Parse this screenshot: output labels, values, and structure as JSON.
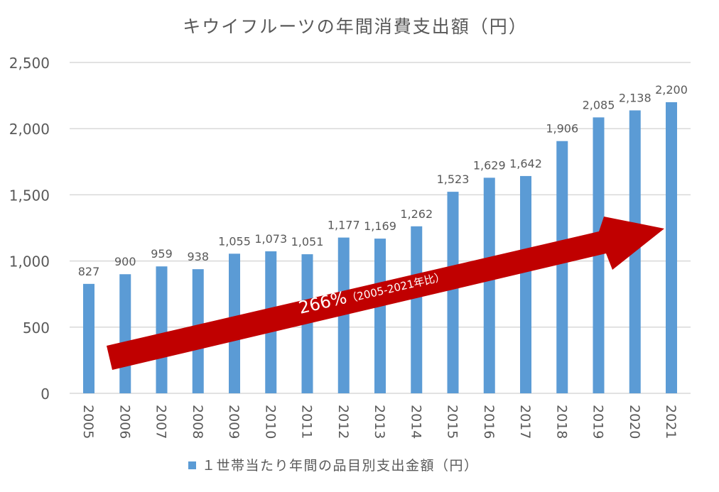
{
  "chart_data": {
    "type": "bar",
    "title": "キウイフルーツの年間消費支出額（円）",
    "xlabel": "",
    "ylabel": "",
    "categories": [
      "2005",
      "2006",
      "2007",
      "2008",
      "2009",
      "2010",
      "2011",
      "2012",
      "2013",
      "2014",
      "2015",
      "2016",
      "2017",
      "2018",
      "2019",
      "2020",
      "2021"
    ],
    "series": [
      {
        "name": "１世帯当たり年間の品目別支出金額（円）",
        "values": [
          827,
          900,
          959,
          938,
          1055,
          1073,
          1051,
          1177,
          1169,
          1262,
          1523,
          1629,
          1642,
          1906,
          2085,
          2138,
          2200
        ],
        "labels": [
          "827",
          "900",
          "959",
          "938",
          "1,055",
          "1,073",
          "1,051",
          "1,177",
          "1,169",
          "1,262",
          "1,523",
          "1,629",
          "1,642",
          "1,906",
          "2,085",
          "2,138",
          "2,200"
        ]
      }
    ],
    "ylim": [
      0,
      2500
    ],
    "yticks": [
      0,
      500,
      1000,
      1500,
      2000,
      2500
    ],
    "ytick_labels": [
      "0",
      "500",
      "1,000",
      "1,500",
      "2,000",
      "2,500"
    ],
    "grid": true,
    "legend": "bottom",
    "annotation": {
      "main": "266%",
      "sub": "（2005-2021年比）"
    },
    "colors": {
      "bar": "#5B9BD5",
      "arrow": "#C00000",
      "grid": "#D9D9D9",
      "text": "#595959"
    }
  }
}
